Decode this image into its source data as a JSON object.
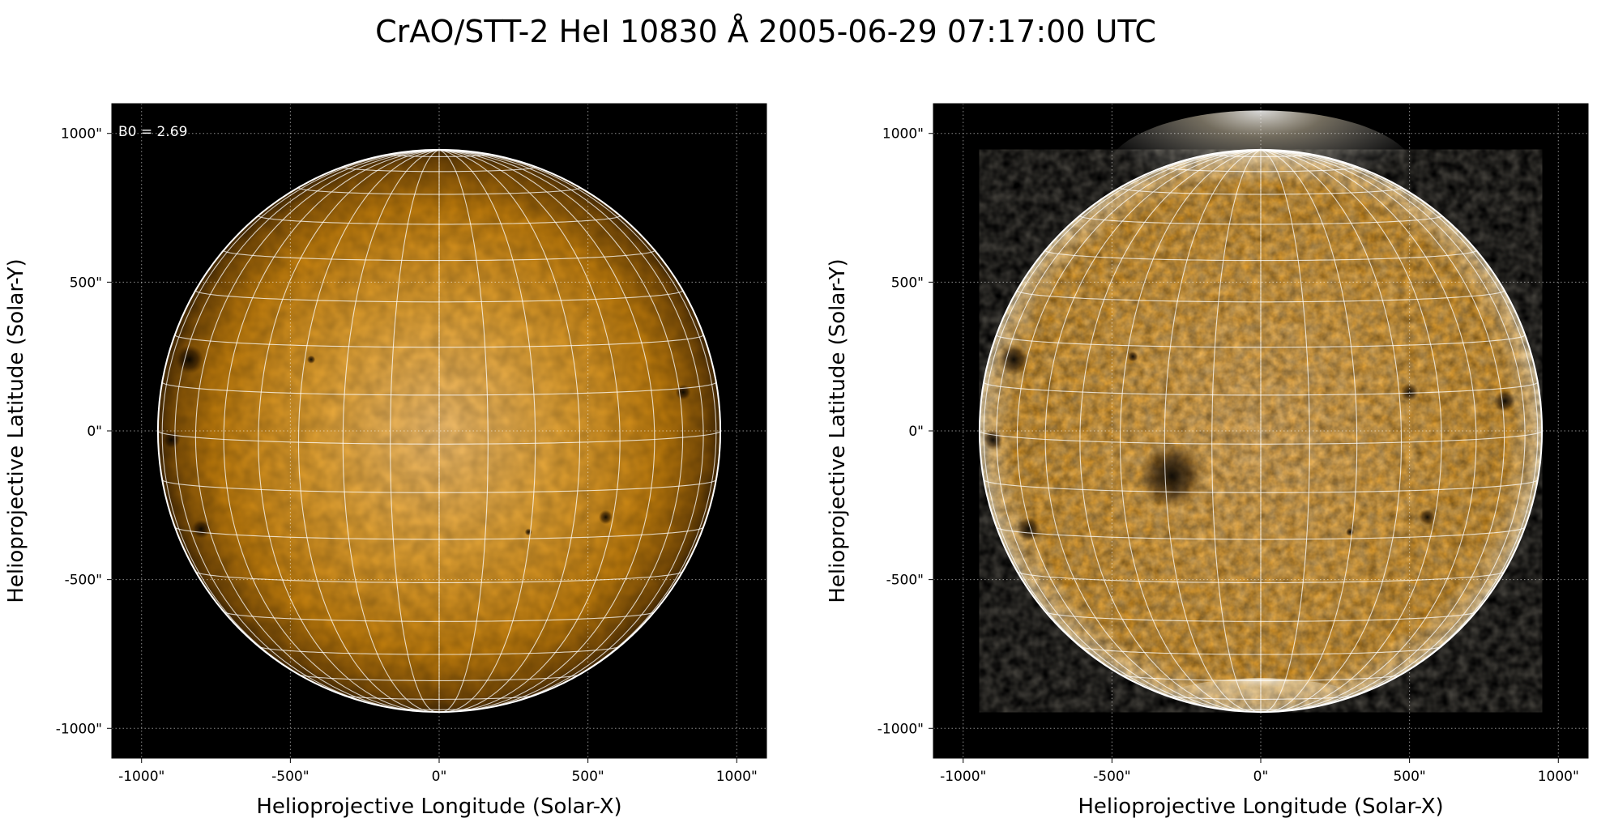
{
  "figure": {
    "title": "CrAO/STT-2 HeI 10830 Å 2005-06-29 07:17:00 UTC"
  },
  "panels": [
    {
      "id": "left",
      "xlabel": "Helioprojective Longitude (Solar-X)",
      "ylabel": "Helioprojective Latitude (Solar-Y)",
      "annotation": "B0 = 2.69",
      "x_ticks": [
        "-1000\"",
        "-500\"",
        "0\"",
        "500\"",
        "1000\""
      ],
      "y_ticks": [
        "1000\"",
        "500\"",
        "0\"",
        "-500\"",
        "-1000\""
      ],
      "tick_values": [
        -1000,
        -500,
        0,
        500,
        1000
      ],
      "axis_range": [
        -1100,
        1100
      ],
      "solar_radius_arcsec": 945,
      "contrast": "normal",
      "dark_regions": [
        {
          "x": -840,
          "y": 240,
          "r": 48
        },
        {
          "x": -430,
          "y": 240,
          "r": 14
        },
        {
          "x": -800,
          "y": -330,
          "r": 32
        },
        {
          "x": 300,
          "y": -340,
          "r": 12
        },
        {
          "x": 560,
          "y": -290,
          "r": 24
        },
        {
          "x": 820,
          "y": 130,
          "r": 26
        },
        {
          "x": -900,
          "y": -30,
          "r": 30
        }
      ]
    },
    {
      "id": "right",
      "xlabel": "Helioprojective Longitude (Solar-X)",
      "ylabel": "Helioprojective Latitude (Solar-Y)",
      "annotation": "",
      "x_ticks": [
        "-1000\"",
        "-500\"",
        "0\"",
        "500\"",
        "1000\""
      ],
      "y_ticks": [
        "1000\"",
        "500\"",
        "0\"",
        "-500\"",
        "-1000\""
      ],
      "tick_values": [
        -1000,
        -500,
        0,
        500,
        1000
      ],
      "axis_range": [
        -1100,
        1100
      ],
      "solar_radius_arcsec": 945,
      "contrast": "enhanced",
      "dark_regions": [
        {
          "x": -830,
          "y": 240,
          "r": 52
        },
        {
          "x": -430,
          "y": 250,
          "r": 18
        },
        {
          "x": -780,
          "y": -330,
          "r": 40
        },
        {
          "x": -300,
          "y": -150,
          "r": 110
        },
        {
          "x": 300,
          "y": -340,
          "r": 14
        },
        {
          "x": 560,
          "y": -290,
          "r": 28
        },
        {
          "x": 500,
          "y": 130,
          "r": 30
        },
        {
          "x": 820,
          "y": 100,
          "r": 36
        },
        {
          "x": -900,
          "y": -30,
          "r": 34
        }
      ]
    }
  ],
  "colors": {
    "disk_center": "#f7c06a",
    "disk_mid": "#d9900f",
    "disk_limb": "#4a2c04",
    "background": "#000000",
    "grid": "#ffffff"
  }
}
